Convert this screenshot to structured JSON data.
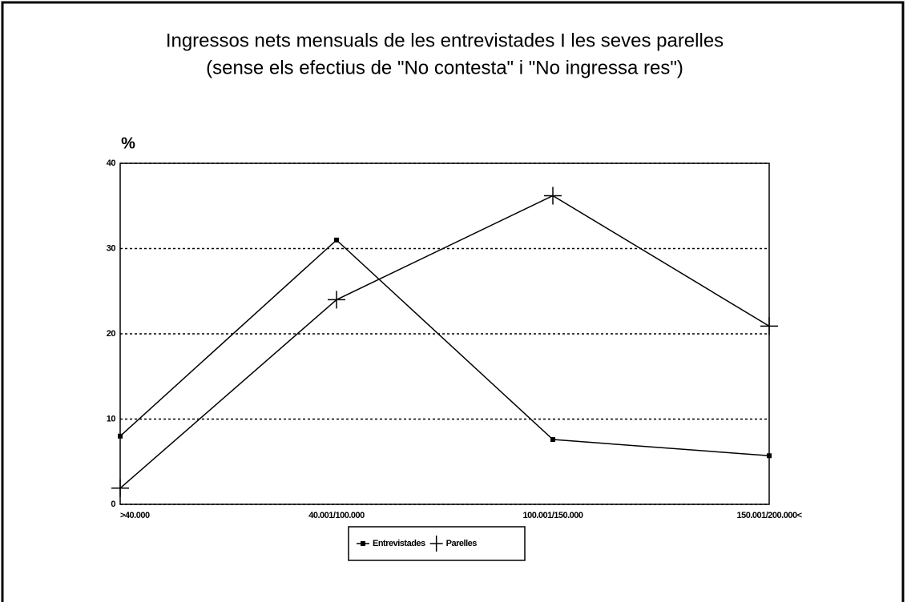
{
  "chart_data": {
    "type": "line",
    "title": [
      "Ingressos nets mensuals de les entrevistades I les seves parelles",
      "(sense els efectius de \"No contesta\" i \"No ingressa res\")"
    ],
    "y_label": "%",
    "categories": [
      ">40.000",
      "40.001/100.000",
      "100.001/150.000",
      "150.001/200.000<"
    ],
    "series": [
      {
        "name": "Entrevistades",
        "color": "#000000",
        "marker": "square",
        "values": [
          8,
          31,
          7.6,
          5.7
        ]
      },
      {
        "name": "Parelles",
        "color": "#000000",
        "marker": "plus",
        "values": [
          1.9,
          24,
          36.2,
          20.9
        ]
      }
    ],
    "ylim": [
      0,
      40
    ],
    "yticks": [
      0,
      10,
      20,
      30,
      40
    ],
    "grid": true,
    "legend": "bottom"
  }
}
